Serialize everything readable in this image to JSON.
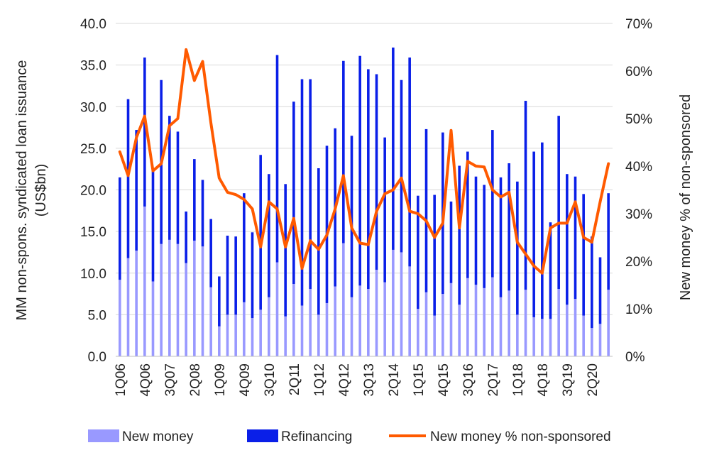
{
  "chart_data": {
    "type": "bar",
    "stacked": true,
    "categories": [
      "1Q06",
      "2Q06",
      "3Q06",
      "4Q06",
      "1Q07",
      "2Q07",
      "3Q07",
      "4Q07",
      "1Q08",
      "2Q08",
      "3Q08",
      "4Q08",
      "1Q09",
      "2Q09",
      "3Q09",
      "4Q09",
      "1Q10",
      "2Q10",
      "3Q10",
      "4Q10",
      "1Q11",
      "2Q11",
      "3Q11",
      "4Q11",
      "1Q12",
      "2Q12",
      "3Q12",
      "4Q12",
      "1Q13",
      "2Q13",
      "3Q13",
      "4Q13",
      "1Q14",
      "2Q14",
      "3Q14",
      "4Q14",
      "1Q15",
      "2Q15",
      "3Q15",
      "4Q15",
      "1Q16",
      "2Q16",
      "3Q16",
      "4Q16",
      "1Q17",
      "2Q17",
      "3Q17",
      "4Q17",
      "1Q18",
      "2Q18",
      "3Q18",
      "4Q18",
      "1Q19",
      "2Q19",
      "3Q19",
      "4Q19",
      "1Q20",
      "2Q20",
      "3Q20",
      "4Q20"
    ],
    "x_tick_labels": [
      "1Q06",
      "4Q06",
      "3Q07",
      "2Q08",
      "1Q09",
      "4Q09",
      "3Q10",
      "2Q11",
      "1Q12",
      "4Q12",
      "3Q13",
      "2Q14",
      "1Q15",
      "4Q15",
      "3Q16",
      "2Q17",
      "1Q18",
      "4Q18",
      "3Q19",
      "2Q20"
    ],
    "series": [
      {
        "name": "New money",
        "axis": "left",
        "color": "#9999ff",
        "values": [
          9.2,
          11.8,
          12.7,
          18.0,
          9.0,
          13.5,
          14.0,
          13.5,
          11.2,
          13.9,
          13.2,
          8.3,
          3.6,
          5.0,
          5.0,
          6.5,
          4.6,
          5.6,
          7.1,
          11.3,
          4.8,
          8.7,
          6.1,
          8.1,
          5.0,
          6.4,
          8.4,
          13.6,
          7.1,
          8.5,
          8.1,
          10.4,
          8.9,
          12.8,
          12.5,
          10.8,
          5.7,
          7.7,
          4.9,
          7.5,
          8.8,
          6.2,
          9.4,
          8.6,
          8.2,
          9.5,
          7.1,
          7.9,
          5.0,
          8.0,
          4.7,
          4.5,
          4.5,
          8.1,
          6.2,
          6.9,
          4.9,
          3.4,
          3.9,
          8.0
        ]
      },
      {
        "name": "Refinancing",
        "axis": "left",
        "color": "#0a1fe8",
        "values": [
          12.3,
          19.1,
          14.5,
          17.9,
          13.6,
          19.7,
          14.9,
          13.5,
          6.2,
          9.8,
          8.0,
          8.2,
          6.0,
          9.5,
          9.4,
          13.1,
          10.3,
          18.6,
          14.8,
          24.9,
          15.9,
          21.9,
          27.2,
          25.2,
          17.6,
          18.9,
          19.0,
          21.9,
          19.4,
          27.6,
          26.4,
          23.5,
          17.4,
          24.3,
          20.7,
          25.1,
          13.6,
          19.6,
          14.5,
          19.4,
          9.8,
          16.7,
          15.2,
          13.0,
          12.4,
          17.7,
          14.4,
          15.3,
          16.0,
          22.7,
          19.9,
          21.2,
          11.6,
          20.8,
          15.7,
          14.7,
          14.6,
          11.0,
          8.0,
          11.6
        ]
      },
      {
        "name": "New money % non-sponsored",
        "axis": "right",
        "type": "line",
        "color": "#ff5a00",
        "values": [
          43,
          38,
          46,
          50.5,
          39,
          40.5,
          48.5,
          50,
          64.5,
          58,
          62,
          49,
          37.5,
          34.5,
          34,
          33,
          31,
          23,
          32.5,
          31,
          23,
          29,
          18.5,
          24.3,
          22.5,
          25.5,
          31,
          38,
          27,
          23.8,
          23.5,
          30.5,
          34.2,
          35,
          37.5,
          30.5,
          30,
          28.5,
          25,
          28,
          47.5,
          27,
          41,
          40,
          39.8,
          35,
          33.5,
          34.5,
          24,
          21.5,
          19,
          17.5,
          27,
          28,
          28,
          32.5,
          25,
          24,
          32.5,
          40.5
        ]
      }
    ],
    "ylabel": "MM non-spons. syndicated loan issuance (US$bn)",
    "ylabel_lines": [
      "MM non-spons. syndicated loan issuance",
      "(US$bn)"
    ],
    "ylim": [
      0,
      40
    ],
    "yticks": [
      "0.0",
      "5.0",
      "10.0",
      "15.0",
      "20.0",
      "25.0",
      "30.0",
      "35.0",
      "40.0"
    ],
    "y2label": "New money % of non-sponsored",
    "y2lim": [
      0,
      70
    ],
    "y2ticks": [
      "0%",
      "10%",
      "20%",
      "30%",
      "40%",
      "50%",
      "60%",
      "70%"
    ],
    "grid": "horizontal",
    "legend_position": "bottom",
    "legend": [
      "New money",
      "Refinancing",
      "New money % non-sponsored"
    ]
  }
}
